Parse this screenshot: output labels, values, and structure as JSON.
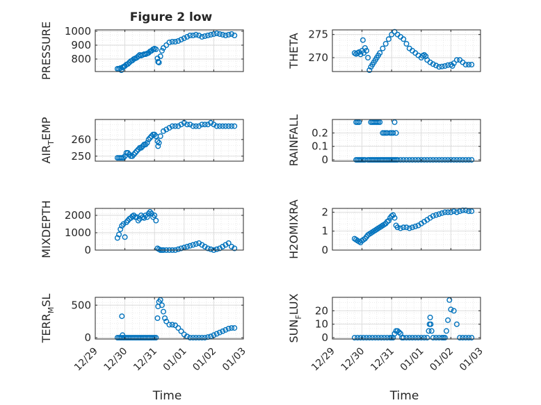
{
  "figure": {
    "title": "Figure 2 low"
  },
  "colors": {
    "marker": "#0072BD",
    "axis": "#262626",
    "grid": "#d9d9d9",
    "background": "#ffffff"
  },
  "chart_data": [
    {
      "type": "scatter",
      "id": "pressure",
      "ylabel": "PRESSURE",
      "ylim": [
        710,
        1010
      ],
      "yticks": [
        800,
        900,
        1000
      ],
      "ytick_labels": [
        "800",
        "900",
        "1000"
      ],
      "xlim": [
        "12/29",
        "01/03"
      ],
      "xticks": [
        "12/29",
        "12/30",
        "12/31",
        "01/01",
        "01/02",
        "01/03"
      ],
      "xlabel": "",
      "grid": true,
      "x": [
        0.75,
        0.8,
        0.85,
        0.88,
        0.92,
        0.96,
        1.0,
        1.05,
        1.1,
        1.15,
        1.2,
        1.25,
        1.3,
        1.35,
        1.4,
        1.45,
        1.5,
        1.55,
        1.6,
        1.65,
        1.7,
        1.75,
        1.8,
        1.85,
        1.9,
        1.95,
        2.0,
        2.05,
        2.1,
        2.12,
        2.15,
        2.2,
        2.25,
        2.3,
        2.4,
        2.5,
        2.6,
        2.7,
        2.8,
        2.9,
        3.0,
        3.1,
        3.2,
        3.3,
        3.4,
        3.5,
        3.6,
        3.7,
        3.8,
        3.9,
        4.0,
        4.1,
        4.2,
        4.3,
        4.4,
        4.5,
        4.6,
        4.7
      ],
      "y": [
        730,
        730,
        735,
        720,
        740,
        745,
        750,
        760,
        765,
        775,
        785,
        790,
        800,
        805,
        810,
        820,
        830,
        825,
        830,
        835,
        835,
        840,
        845,
        855,
        860,
        870,
        875,
        870,
        805,
        780,
        775,
        820,
        860,
        880,
        900,
        920,
        925,
        925,
        930,
        940,
        950,
        960,
        970,
        970,
        975,
        970,
        960,
        965,
        970,
        975,
        980,
        985,
        980,
        975,
        970,
        975,
        980,
        970
      ]
    },
    {
      "type": "scatter",
      "id": "theta",
      "ylabel": "THETA",
      "ylim": [
        267,
        276
      ],
      "yticks": [
        270,
        275
      ],
      "ytick_labels": [
        "270",
        "275"
      ],
      "xlim": [
        "12/29",
        "01/03"
      ],
      "xticks": [
        "12/29",
        "12/30",
        "12/31",
        "01/01",
        "01/02",
        "01/03"
      ],
      "xlabel": "",
      "grid": true,
      "x": [
        0.75,
        0.8,
        0.85,
        0.9,
        0.95,
        1.0,
        1.03,
        1.06,
        1.1,
        1.15,
        1.2,
        1.25,
        1.3,
        1.35,
        1.4,
        1.45,
        1.5,
        1.55,
        1.6,
        1.7,
        1.8,
        1.9,
        2.0,
        2.1,
        2.2,
        2.3,
        2.4,
        2.5,
        2.6,
        2.7,
        2.8,
        2.9,
        3.0,
        3.05,
        3.1,
        3.15,
        3.2,
        3.3,
        3.4,
        3.5,
        3.6,
        3.7,
        3.8,
        3.9,
        4.0,
        4.05,
        4.1,
        4.2,
        4.3,
        4.4,
        4.5,
        4.6,
        4.7
      ],
      "y": [
        271,
        270.8,
        271,
        271.2,
        270.7,
        271.5,
        273.8,
        271,
        272.1,
        271.5,
        270,
        267.3,
        268,
        268.5,
        269,
        269.5,
        270,
        270.5,
        271,
        272,
        273,
        274,
        275,
        275.6,
        275,
        274.5,
        274,
        273,
        272,
        271.5,
        271,
        270.5,
        270,
        270.4,
        270.6,
        270.3,
        269.5,
        269,
        268.6,
        268.3,
        268,
        268.1,
        268.2,
        268.4,
        268.5,
        268.2,
        268.8,
        269.5,
        269.5,
        269,
        268.5,
        268.5,
        268.5
      ]
    },
    {
      "type": "scatter",
      "id": "air_temp",
      "ylabel": "AIR_TEMP",
      "ylim": [
        247,
        272
      ],
      "yticks": [
        250,
        260
      ],
      "ytick_labels": [
        "250",
        "260"
      ],
      "xlim": [
        "12/29",
        "01/03"
      ],
      "xticks": [
        "12/29",
        "12/30",
        "12/31",
        "01/01",
        "01/02",
        "01/03"
      ],
      "xlabel": "",
      "grid": true,
      "x": [
        0.75,
        0.8,
        0.85,
        0.9,
        0.95,
        1.0,
        1.05,
        1.1,
        1.15,
        1.2,
        1.25,
        1.3,
        1.35,
        1.4,
        1.45,
        1.5,
        1.55,
        1.6,
        1.65,
        1.7,
        1.75,
        1.8,
        1.85,
        1.9,
        1.95,
        2.0,
        2.05,
        2.1,
        2.12,
        2.15,
        2.2,
        2.3,
        2.4,
        2.5,
        2.6,
        2.7,
        2.8,
        2.9,
        3.0,
        3.1,
        3.2,
        3.3,
        3.4,
        3.5,
        3.6,
        3.7,
        3.8,
        3.9,
        4.0,
        4.1,
        4.2,
        4.3,
        4.4,
        4.5,
        4.6,
        4.7
      ],
      "y": [
        249,
        249,
        249,
        249,
        249,
        250,
        252,
        252,
        251,
        250,
        250,
        251,
        252,
        253,
        254,
        255,
        255,
        256,
        257,
        257,
        258,
        260,
        261,
        262,
        263,
        263,
        262,
        259,
        256,
        258,
        262,
        265,
        266,
        267,
        268,
        268,
        268,
        269,
        270,
        269,
        269,
        268,
        268,
        268,
        269,
        269,
        269,
        270,
        269,
        268,
        268,
        268,
        268,
        268,
        268,
        268
      ]
    },
    {
      "type": "scatter",
      "id": "rainfall",
      "ylabel": "RAINFALL",
      "ylim": [
        -0.01,
        0.3
      ],
      "yticks": [
        0,
        0.1,
        0.2
      ],
      "ytick_labels": [
        "0",
        "0.1",
        "0.2"
      ],
      "xlim": [
        "12/29",
        "01/03"
      ],
      "xticks": [
        "12/29",
        "12/30",
        "12/31",
        "01/01",
        "01/02",
        "01/03"
      ],
      "xlabel": "",
      "grid": true,
      "x": [
        0.8,
        0.85,
        0.9,
        0.95,
        1.0,
        1.05,
        1.1,
        1.2,
        1.25,
        1.3,
        1.35,
        1.4,
        1.45,
        1.5,
        1.55,
        1.6,
        1.65,
        1.7,
        1.75,
        1.8,
        1.85,
        1.9,
        1.95,
        2.0,
        2.05,
        2.1,
        2.15,
        2.2,
        2.3,
        2.4,
        2.5,
        2.6,
        2.7,
        2.8,
        2.9,
        3.0,
        3.1,
        3.2,
        3.3,
        3.4,
        3.5,
        3.6,
        3.7,
        3.8,
        3.9,
        4.0,
        4.1,
        4.2,
        4.3,
        4.4,
        4.5,
        4.6,
        4.7,
        0.8,
        0.85,
        0.9,
        1.3,
        1.35,
        1.4,
        1.45,
        1.5,
        1.55,
        1.6,
        1.7,
        1.75,
        1.8,
        1.85,
        1.95,
        2.0,
        2.05,
        2.1,
        2.15
      ],
      "y": [
        0,
        0,
        0,
        0,
        0,
        0,
        0,
        0,
        0,
        0,
        0,
        0,
        0,
        0,
        0,
        0,
        0,
        0,
        0,
        0,
        0,
        0,
        0,
        0,
        0,
        0,
        0,
        0,
        0,
        0,
        0,
        0,
        0,
        0,
        0,
        0,
        0,
        0,
        0,
        0,
        0,
        0,
        0,
        0,
        0,
        0,
        0,
        0,
        0,
        0,
        0,
        0,
        0,
        0.28,
        0.28,
        0.28,
        0.28,
        0.28,
        0.28,
        0.28,
        0.28,
        0.28,
        0.28,
        0.2,
        0.2,
        0.2,
        0.2,
        0.2,
        0.2,
        0.2,
        0.28,
        0.2
      ]
    },
    {
      "type": "scatter",
      "id": "mixdepth",
      "ylabel": "MIXDEPTH",
      "ylim": [
        0,
        2400
      ],
      "yticks": [
        0,
        1000,
        2000
      ],
      "ytick_labels": [
        "0",
        "1000",
        "2000"
      ],
      "xlim": [
        "12/29",
        "01/03"
      ],
      "xticks": [
        "12/29",
        "12/30",
        "12/31",
        "01/01",
        "01/02",
        "01/03"
      ],
      "xlabel": "",
      "grid": true,
      "x": [
        0.75,
        0.8,
        0.85,
        0.9,
        0.95,
        1.0,
        1.05,
        1.1,
        1.15,
        1.2,
        1.25,
        1.3,
        1.35,
        1.4,
        1.45,
        1.5,
        1.55,
        1.6,
        1.65,
        1.7,
        1.75,
        1.8,
        1.85,
        1.9,
        1.95,
        2.0,
        2.05,
        2.1,
        2.15,
        2.2,
        2.25,
        2.3,
        2.4,
        2.5,
        2.6,
        2.7,
        2.8,
        2.9,
        3.0,
        3.1,
        3.2,
        3.3,
        3.4,
        3.5,
        3.6,
        3.7,
        3.8,
        3.9,
        4.0,
        4.1,
        4.2,
        4.3,
        4.4,
        4.5,
        4.6,
        4.7
      ],
      "y": [
        700,
        900,
        1200,
        1400,
        1500,
        750,
        1600,
        1700,
        1800,
        1850,
        1950,
        2000,
        1900,
        1900,
        1700,
        1800,
        2000,
        1900,
        1850,
        2000,
        1900,
        2100,
        2200,
        2100,
        1900,
        2000,
        1700,
        100,
        50,
        0,
        0,
        0,
        0,
        0,
        0,
        0,
        50,
        100,
        150,
        200,
        250,
        300,
        350,
        400,
        300,
        200,
        100,
        50,
        0,
        50,
        100,
        200,
        300,
        400,
        200,
        100
      ]
    },
    {
      "type": "scatter",
      "id": "h2omixra",
      "ylabel": "H2OMIXRA",
      "ylim": [
        0,
        2.2
      ],
      "yticks": [
        0,
        1,
        2
      ],
      "ytick_labels": [
        "0",
        "1",
        "2"
      ],
      "xlim": [
        "12/29",
        "01/03"
      ],
      "xticks": [
        "12/29",
        "12/30",
        "12/31",
        "01/01",
        "01/02",
        "01/03"
      ],
      "xlabel": "",
      "grid": true,
      "x": [
        0.75,
        0.8,
        0.85,
        0.9,
        0.95,
        1.0,
        1.05,
        1.1,
        1.15,
        1.2,
        1.25,
        1.3,
        1.35,
        1.4,
        1.45,
        1.5,
        1.55,
        1.6,
        1.65,
        1.7,
        1.75,
        1.8,
        1.85,
        1.9,
        1.95,
        2.0,
        2.05,
        2.1,
        2.15,
        2.2,
        2.3,
        2.4,
        2.5,
        2.6,
        2.7,
        2.8,
        2.9,
        3.0,
        3.1,
        3.2,
        3.3,
        3.4,
        3.5,
        3.6,
        3.7,
        3.8,
        3.9,
        4.0,
        4.1,
        4.2,
        4.3,
        4.4,
        4.5,
        4.6,
        4.7
      ],
      "y": [
        0.6,
        0.55,
        0.5,
        0.45,
        0.4,
        0.5,
        0.55,
        0.6,
        0.7,
        0.8,
        0.85,
        0.9,
        0.95,
        1.0,
        1.05,
        1.1,
        1.15,
        1.2,
        1.25,
        1.3,
        1.35,
        1.4,
        1.5,
        1.55,
        1.7,
        1.8,
        1.85,
        1.7,
        1.3,
        1.2,
        1.15,
        1.2,
        1.2,
        1.15,
        1.2,
        1.25,
        1.3,
        1.4,
        1.5,
        1.6,
        1.7,
        1.8,
        1.85,
        1.9,
        1.95,
        2.0,
        2.0,
        2.0,
        2.05,
        2.0,
        2.05,
        2.1,
        2.1,
        2.05,
        2.05
      ]
    },
    {
      "type": "scatter",
      "id": "terr_msl",
      "ylabel": "TERR_MSL",
      "ylim": [
        -20,
        620
      ],
      "yticks": [
        0,
        500
      ],
      "ytick_labels": [
        "0",
        "500"
      ],
      "xlim": [
        "12/29",
        "01/03"
      ],
      "xticks": [
        "12/29",
        "12/30",
        "12/31",
        "01/01",
        "01/02",
        "01/03"
      ],
      "xlabel": "Time",
      "grid": true,
      "x": [
        0.75,
        0.8,
        0.85,
        0.9,
        0.95,
        1.0,
        1.05,
        1.1,
        1.15,
        1.2,
        1.25,
        1.3,
        1.35,
        1.4,
        1.45,
        1.5,
        1.55,
        1.6,
        1.65,
        1.7,
        1.75,
        1.8,
        1.85,
        1.9,
        1.95,
        2.0,
        2.05,
        2.1,
        2.12,
        2.15,
        2.2,
        2.25,
        2.3,
        2.35,
        2.4,
        2.5,
        2.6,
        2.7,
        2.8,
        2.9,
        3.0,
        3.1,
        3.2,
        3.3,
        3.4,
        3.5,
        3.6,
        3.7,
        3.8,
        3.9,
        4.0,
        4.1,
        4.2,
        4.3,
        4.4,
        4.5,
        4.6,
        4.7,
        0.9,
        0.92
      ],
      "y": [
        0,
        0,
        0,
        0,
        0,
        0,
        0,
        0,
        0,
        0,
        0,
        0,
        0,
        0,
        0,
        0,
        0,
        0,
        0,
        0,
        0,
        0,
        0,
        0,
        0,
        0,
        0,
        300,
        480,
        550,
        580,
        500,
        400,
        300,
        250,
        200,
        200,
        190,
        150,
        100,
        50,
        20,
        0,
        0,
        0,
        0,
        0,
        0,
        10,
        20,
        40,
        60,
        80,
        100,
        120,
        140,
        150,
        150,
        330,
        40
      ]
    },
    {
      "type": "scatter",
      "id": "sun_flux",
      "ylabel": "SUN_FLUX",
      "ylim": [
        -1,
        30
      ],
      "yticks": [
        0,
        10,
        20
      ],
      "ytick_labels": [
        "0",
        "10",
        "20"
      ],
      "xlim": [
        "12/29",
        "01/03"
      ],
      "xticks": [
        "12/29",
        "12/30",
        "12/31",
        "01/01",
        "01/02",
        "01/03"
      ],
      "xlabel": "Time",
      "grid": true,
      "x": [
        0.75,
        0.85,
        0.95,
        1.05,
        1.15,
        1.25,
        1.35,
        1.45,
        1.55,
        1.65,
        1.75,
        1.85,
        1.95,
        2.0,
        2.05,
        2.1,
        2.15,
        2.2,
        2.25,
        2.3,
        2.35,
        2.4,
        2.5,
        2.6,
        2.7,
        2.8,
        2.9,
        3.0,
        3.1,
        3.2,
        3.25,
        3.28,
        3.3,
        3.32,
        3.35,
        3.4,
        3.5,
        3.6,
        3.7,
        3.75,
        3.8,
        3.85,
        3.9,
        3.95,
        4.0,
        4.1,
        4.2,
        4.3,
        4.4,
        4.5,
        4.6,
        4.7
      ],
      "y": [
        0,
        0,
        0,
        0,
        0,
        0,
        0,
        0,
        0,
        0,
        0,
        0,
        0,
        0,
        0,
        3,
        5,
        5,
        4,
        3,
        0,
        0,
        0,
        0,
        0,
        0,
        0,
        0,
        0,
        0,
        5,
        10,
        15,
        10,
        5,
        0,
        0,
        0,
        0,
        0,
        0,
        5,
        13,
        28,
        21,
        20,
        10,
        0,
        0,
        0,
        0,
        0
      ]
    }
  ]
}
